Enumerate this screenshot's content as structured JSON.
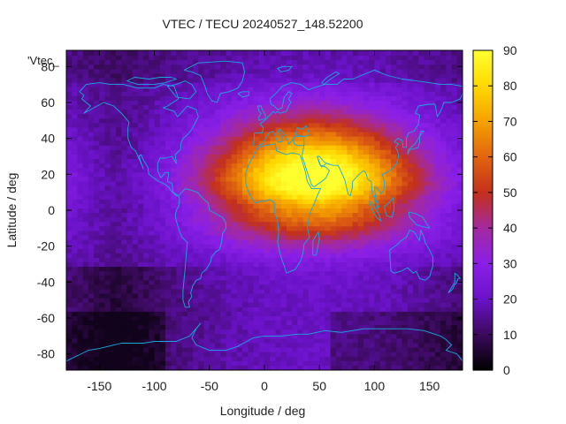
{
  "chart_data": {
    "type": "heatmap",
    "title": "VTEC / TECU 20240527_148.52200",
    "series_label": "'Vtec_",
    "xlabel": "Longitude / deg",
    "ylabel": "Latitude / deg",
    "xlim": [
      -180,
      180
    ],
    "ylim": [
      -89,
      89
    ],
    "x_ticks": [
      -150,
      -100,
      -50,
      0,
      50,
      100,
      150
    ],
    "y_ticks": [
      -80,
      -60,
      -40,
      -20,
      0,
      20,
      40,
      60,
      80
    ],
    "colorbar": {
      "min": 0,
      "max": 90,
      "ticks": [
        0,
        10,
        20,
        30,
        40,
        50,
        60,
        70,
        80,
        90
      ],
      "palette": [
        "#000000",
        "#3a0a5a",
        "#6a12c8",
        "#8a1fe8",
        "#a32aa0",
        "#c3301c",
        "#e06410",
        "#f4a000",
        "#ffd800",
        "#ffff30"
      ]
    },
    "grid": {
      "lon_step": 5,
      "lat_step": 2.5,
      "lon_start": -180,
      "lat_start": -87.5,
      "model": {
        "background_vtec": 20,
        "subsolar_longitude": 45,
        "subsolar_latitude": 21,
        "peak_vtec": 68,
        "equatorial_crest_vtec": 10,
        "night_minimum_vtec": 3
      }
    },
    "overlay": "coastlines"
  },
  "colors": {
    "coastline": "#19a8dc",
    "axis": "#000000",
    "text": "#222222"
  }
}
